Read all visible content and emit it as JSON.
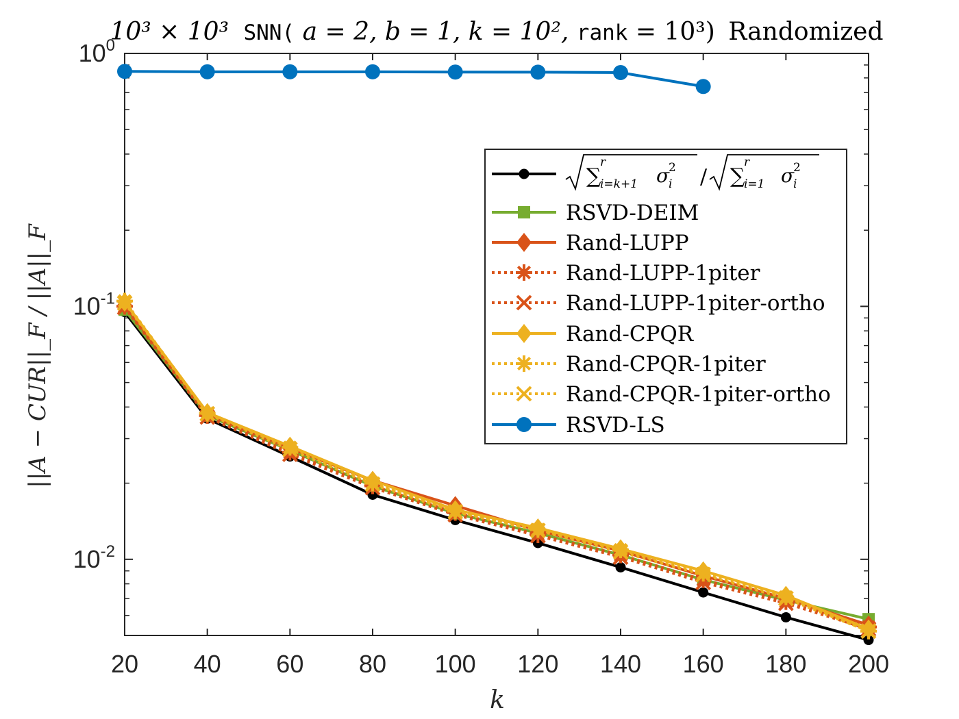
{
  "chart_data": {
    "type": "line",
    "title": {
      "pre": "10³ × 10³",
      "code1": "SNN(",
      "params": "a = 2, b = 1, k = 10²,",
      "code2": "rank",
      "eq": "= 10³)",
      "post": "Randomized"
    },
    "xlabel": "k",
    "ylabel": "||A − CUR||_F / ||A||_F",
    "x": [
      20,
      40,
      60,
      80,
      100,
      120,
      140,
      160,
      180,
      200
    ],
    "xlim": [
      20,
      200
    ],
    "ylim": [
      0.005,
      1
    ],
    "yscale": "log",
    "x_ticks": [
      "20",
      "40",
      "60",
      "80",
      "100",
      "120",
      "140",
      "160",
      "180",
      "200"
    ],
    "y_ticks": [
      {
        "value": 1,
        "base": "10",
        "exp": "0"
      },
      {
        "value": 0.1,
        "base": "10",
        "exp": "-1"
      },
      {
        "value": 0.01,
        "base": "10",
        "exp": "-2"
      }
    ],
    "grid": false,
    "legend_position": "top-right",
    "series": [
      {
        "name": "sqrt(Σ_{i=k+1}^{r} σ_i²) / sqrt(Σ_{i=1}^{r} σ_i²)",
        "legend_key": "ratio",
        "color": "#000000",
        "linestyle": "solid",
        "marker": "dot-small",
        "values": [
          0.095,
          0.036,
          0.0255,
          0.018,
          0.0143,
          0.0116,
          0.0093,
          0.0074,
          0.0059,
          0.0048
        ]
      },
      {
        "name": "RSVD-DEIM",
        "color": "#77ac30",
        "linestyle": "solid",
        "marker": "square",
        "values": [
          0.097,
          0.037,
          0.027,
          0.0195,
          0.0152,
          0.0127,
          0.0104,
          0.0083,
          0.0069,
          0.0058
        ]
      },
      {
        "name": "Rand-LUPP",
        "color": "#d95319",
        "linestyle": "solid",
        "marker": "diamond",
        "values": [
          0.101,
          0.0375,
          0.0275,
          0.0205,
          0.0163,
          0.013,
          0.0108,
          0.0086,
          0.007,
          0.0055
        ]
      },
      {
        "name": "Rand-LUPP-1piter",
        "color": "#d95319",
        "linestyle": "dotted",
        "marker": "asterisk",
        "values": [
          0.1,
          0.037,
          0.0265,
          0.0195,
          0.0153,
          0.0125,
          0.0104,
          0.0083,
          0.0068,
          0.0054
        ]
      },
      {
        "name": "Rand-LUPP-1piter-ortho",
        "color": "#d95319",
        "linestyle": "dotted",
        "marker": "x",
        "values": [
          0.099,
          0.0365,
          0.026,
          0.0192,
          0.015,
          0.0124,
          0.0102,
          0.0081,
          0.0067,
          0.0053
        ]
      },
      {
        "name": "Rand-CPQR",
        "color": "#edb120",
        "linestyle": "solid",
        "marker": "diamond",
        "values": [
          0.104,
          0.038,
          0.028,
          0.0205,
          0.0157,
          0.0133,
          0.011,
          0.009,
          0.0072,
          0.0053
        ]
      },
      {
        "name": "Rand-CPQR-1piter",
        "color": "#edb120",
        "linestyle": "dotted",
        "marker": "asterisk",
        "values": [
          0.105,
          0.0378,
          0.0277,
          0.02,
          0.0155,
          0.0131,
          0.0109,
          0.0088,
          0.0071,
          0.0052
        ]
      },
      {
        "name": "Rand-CPQR-1piter-ortho",
        "color": "#edb120",
        "linestyle": "dotted",
        "marker": "x",
        "values": [
          0.103,
          0.0376,
          0.0272,
          0.0198,
          0.0154,
          0.013,
          0.0107,
          0.0087,
          0.007,
          0.0052
        ]
      },
      {
        "name": "RSVD-LS",
        "color": "#0072bd",
        "linestyle": "solid",
        "marker": "dot",
        "values": [
          0.849,
          0.846,
          0.846,
          0.846,
          0.844,
          0.843,
          0.84,
          0.74,
          null,
          null
        ]
      }
    ]
  }
}
